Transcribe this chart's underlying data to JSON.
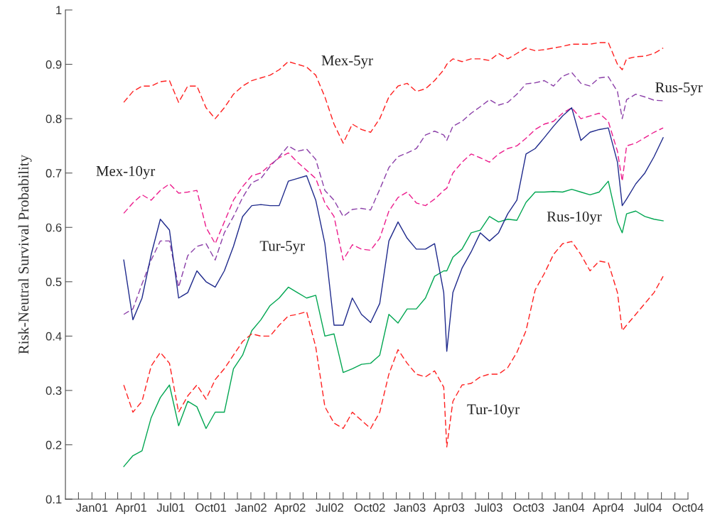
{
  "chart_data": {
    "type": "line",
    "ylabel": "Risk-Neutral Survival Probability",
    "x": [
      "2001-03-15",
      "2001-04-05",
      "2001-04-26",
      "2001-05-17",
      "2001-06-07",
      "2001-06-28",
      "2001-07-19",
      "2001-08-09",
      "2001-08-30",
      "2001-09-20",
      "2001-10-11",
      "2001-11-01",
      "2001-11-22",
      "2001-12-13",
      "2002-01-03",
      "2002-01-24",
      "2002-02-14",
      "2002-03-07",
      "2002-03-28",
      "2002-04-18",
      "2002-05-09",
      "2002-05-30",
      "2002-06-20",
      "2002-07-11",
      "2002-08-01",
      "2002-08-22",
      "2002-09-12",
      "2002-10-03",
      "2002-10-24",
      "2002-11-14",
      "2002-12-05",
      "2002-12-26",
      "2003-01-16",
      "2003-02-06",
      "2003-02-27",
      "2003-03-20",
      "2003-03-27",
      "2003-04-10",
      "2003-05-01",
      "2003-05-22",
      "2003-06-12",
      "2003-07-03",
      "2003-07-24",
      "2003-08-14",
      "2003-09-04",
      "2003-09-25",
      "2003-10-16",
      "2003-11-06",
      "2003-11-27",
      "2003-12-18",
      "2004-01-08",
      "2004-01-29",
      "2004-02-19",
      "2004-03-11",
      "2004-04-01",
      "2004-04-22",
      "2004-05-03",
      "2004-05-13",
      "2004-06-03",
      "2004-06-24",
      "2004-07-15",
      "2004-08-05"
    ],
    "series": [
      {
        "name": "Mex-5yr",
        "color": "#ff2020",
        "line_style": "dashed",
        "values": [
          0.83,
          0.85,
          0.86,
          0.86,
          0.868,
          0.87,
          0.83,
          0.86,
          0.86,
          0.82,
          0.8,
          0.82,
          0.845,
          0.86,
          0.87,
          0.875,
          0.88,
          0.89,
          0.905,
          0.9,
          0.895,
          0.88,
          0.84,
          0.79,
          0.755,
          0.79,
          0.78,
          0.775,
          0.8,
          0.84,
          0.86,
          0.865,
          0.85,
          0.855,
          0.87,
          0.89,
          0.9,
          0.91,
          0.905,
          0.91,
          0.91,
          0.907,
          0.92,
          0.91,
          0.92,
          0.93,
          0.925,
          0.927,
          0.93,
          0.933,
          0.937,
          0.937,
          0.937,
          0.94,
          0.94,
          0.9,
          0.89,
          0.91,
          0.914,
          0.915,
          0.92,
          0.93
        ]
      },
      {
        "name": "Mex-10yr",
        "color": "#ec1c8c",
        "line_style": "dashed",
        "values": [
          0.626,
          0.645,
          0.66,
          0.65,
          0.668,
          0.68,
          0.663,
          0.665,
          0.668,
          0.6,
          0.57,
          0.61,
          0.65,
          0.675,
          0.695,
          0.7,
          0.715,
          0.728,
          0.737,
          0.72,
          0.705,
          0.69,
          0.645,
          0.62,
          0.54,
          0.568,
          0.56,
          0.558,
          0.58,
          0.63,
          0.655,
          0.665,
          0.645,
          0.64,
          0.652,
          0.668,
          0.672,
          0.7,
          0.72,
          0.735,
          0.728,
          0.72,
          0.735,
          0.745,
          0.75,
          0.764,
          0.78,
          0.79,
          0.795,
          0.81,
          0.82,
          0.8,
          0.805,
          0.81,
          0.795,
          0.74,
          0.685,
          0.75,
          0.755,
          0.765,
          0.775,
          0.783
        ]
      },
      {
        "name": "Rus-5yr",
        "color": "#8b3fa8",
        "line_style": "dashed",
        "values": [
          0.44,
          0.45,
          0.496,
          0.54,
          0.575,
          0.575,
          0.49,
          0.548,
          0.565,
          0.57,
          0.54,
          0.59,
          0.62,
          0.655,
          0.682,
          0.69,
          0.712,
          0.73,
          0.75,
          0.74,
          0.744,
          0.725,
          0.668,
          0.65,
          0.62,
          0.633,
          0.635,
          0.632,
          0.67,
          0.71,
          0.73,
          0.737,
          0.745,
          0.77,
          0.777,
          0.77,
          0.76,
          0.786,
          0.795,
          0.81,
          0.822,
          0.835,
          0.825,
          0.83,
          0.845,
          0.864,
          0.866,
          0.87,
          0.86,
          0.878,
          0.885,
          0.865,
          0.86,
          0.875,
          0.877,
          0.85,
          0.8,
          0.835,
          0.845,
          0.84,
          0.834,
          0.833
        ]
      },
      {
        "name": "Rus-10yr",
        "color": "#00a651",
        "line_style": "solid",
        "values": [
          0.16,
          0.18,
          0.189,
          0.25,
          0.287,
          0.31,
          0.235,
          0.28,
          0.27,
          0.23,
          0.26,
          0.26,
          0.34,
          0.365,
          0.41,
          0.43,
          0.456,
          0.47,
          0.49,
          0.48,
          0.47,
          0.475,
          0.4,
          0.404,
          0.333,
          0.34,
          0.348,
          0.35,
          0.365,
          0.44,
          0.424,
          0.45,
          0.45,
          0.47,
          0.51,
          0.52,
          0.52,
          0.545,
          0.56,
          0.59,
          0.595,
          0.62,
          0.61,
          0.615,
          0.613,
          0.646,
          0.665,
          0.665,
          0.666,
          0.665,
          0.67,
          0.665,
          0.66,
          0.665,
          0.685,
          0.61,
          0.59,
          0.625,
          0.63,
          0.62,
          0.615,
          0.612
        ]
      },
      {
        "name": "Tur-5yr",
        "color": "#1f2a8c",
        "line_style": "solid",
        "values": [
          0.54,
          0.43,
          0.47,
          0.55,
          0.615,
          0.595,
          0.47,
          0.48,
          0.52,
          0.5,
          0.49,
          0.52,
          0.565,
          0.62,
          0.64,
          0.642,
          0.64,
          0.64,
          0.685,
          0.69,
          0.695,
          0.65,
          0.57,
          0.42,
          0.42,
          0.47,
          0.44,
          0.425,
          0.46,
          0.575,
          0.61,
          0.58,
          0.56,
          0.56,
          0.57,
          0.48,
          0.372,
          0.48,
          0.525,
          0.555,
          0.59,
          0.575,
          0.59,
          0.625,
          0.65,
          0.735,
          0.745,
          0.765,
          0.786,
          0.805,
          0.82,
          0.76,
          0.775,
          0.78,
          0.783,
          0.72,
          0.64,
          0.652,
          0.68,
          0.7,
          0.73,
          0.765
        ]
      },
      {
        "name": "Tur-10yr",
        "color": "#ff2020",
        "line_style": "dashed",
        "values": [
          0.31,
          0.26,
          0.28,
          0.345,
          0.37,
          0.35,
          0.26,
          0.29,
          0.31,
          0.284,
          0.32,
          0.34,
          0.365,
          0.39,
          0.404,
          0.4,
          0.4,
          0.42,
          0.437,
          0.44,
          0.445,
          0.38,
          0.27,
          0.24,
          0.23,
          0.26,
          0.245,
          0.23,
          0.26,
          0.33,
          0.375,
          0.35,
          0.33,
          0.325,
          0.336,
          0.306,
          0.196,
          0.28,
          0.31,
          0.313,
          0.325,
          0.33,
          0.33,
          0.342,
          0.37,
          0.41,
          0.485,
          0.515,
          0.55,
          0.57,
          0.574,
          0.55,
          0.52,
          0.538,
          0.535,
          0.48,
          0.41,
          0.42,
          0.44,
          0.46,
          0.48,
          0.51
        ]
      }
    ],
    "xlim": [
      "2000-11-01",
      "2004-10-01"
    ],
    "xticks": [
      {
        "value": "2000-12",
        "label": null
      },
      {
        "value": "2001-01",
        "label": "Jan01"
      },
      {
        "value": "2001-02",
        "label": null
      },
      {
        "value": "2001-03",
        "label": null
      },
      {
        "value": "2001-04",
        "label": "Apr01"
      },
      {
        "value": "2001-05",
        "label": null
      },
      {
        "value": "2001-06",
        "label": null
      },
      {
        "value": "2001-07",
        "label": "Jul01"
      },
      {
        "value": "2001-08",
        "label": null
      },
      {
        "value": "2001-09",
        "label": null
      },
      {
        "value": "2001-10",
        "label": "Oct01"
      },
      {
        "value": "2001-11",
        "label": null
      },
      {
        "value": "2001-12",
        "label": null
      },
      {
        "value": "2002-01",
        "label": "Jan02"
      },
      {
        "value": "2002-02",
        "label": null
      },
      {
        "value": "2002-03",
        "label": null
      },
      {
        "value": "2002-04",
        "label": "Apr02"
      },
      {
        "value": "2002-05",
        "label": null
      },
      {
        "value": "2002-06",
        "label": null
      },
      {
        "value": "2002-07",
        "label": "Jul02"
      },
      {
        "value": "2002-08",
        "label": null
      },
      {
        "value": "2002-09",
        "label": null
      },
      {
        "value": "2002-10",
        "label": "Oct02"
      },
      {
        "value": "2002-11",
        "label": null
      },
      {
        "value": "2002-12",
        "label": null
      },
      {
        "value": "2003-01",
        "label": "Jan03"
      },
      {
        "value": "2003-02",
        "label": null
      },
      {
        "value": "2003-03",
        "label": null
      },
      {
        "value": "2003-04",
        "label": "Apr03"
      },
      {
        "value": "2003-05",
        "label": null
      },
      {
        "value": "2003-06",
        "label": null
      },
      {
        "value": "2003-07",
        "label": "Jul03"
      },
      {
        "value": "2003-08",
        "label": null
      },
      {
        "value": "2003-09",
        "label": null
      },
      {
        "value": "2003-10",
        "label": "Oct03"
      },
      {
        "value": "2003-11",
        "label": null
      },
      {
        "value": "2003-12",
        "label": null
      },
      {
        "value": "2004-01",
        "label": "Jan04"
      },
      {
        "value": "2004-02",
        "label": null
      },
      {
        "value": "2004-03",
        "label": null
      },
      {
        "value": "2004-04",
        "label": "Apr04"
      },
      {
        "value": "2004-05",
        "label": null
      },
      {
        "value": "2004-06",
        "label": null
      },
      {
        "value": "2004-07",
        "label": "Jul04"
      },
      {
        "value": "2004-08",
        "label": null
      },
      {
        "value": "2004-09",
        "label": null
      },
      {
        "value": "2004-10",
        "label": "Oct04"
      }
    ],
    "ylim": [
      0.1,
      1
    ],
    "yticks": [
      0.1,
      0.2,
      0.3,
      0.4,
      0.5,
      0.6,
      0.7,
      0.8,
      0.9,
      1
    ]
  }
}
